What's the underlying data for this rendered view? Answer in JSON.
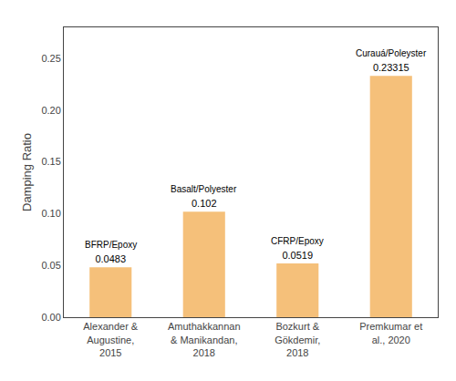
{
  "chart_data": {
    "type": "bar",
    "categories": [
      "Alexander &\nAugustine,\n2015",
      "Amuthakkannan\n& Manikandan,\n2018",
      "Bozkurt &\nGökdemir,\n2018",
      "Premkumar et\nal., 2020"
    ],
    "values": [
      0.0483,
      0.102,
      0.0519,
      0.23315
    ],
    "data_labels": true,
    "annotations": [
      "BFRP/Epoxy",
      "Basalt/Polyester",
      "CFRP/Epoxy",
      "Curauá/Poleyster"
    ],
    "color": "#F5C07A",
    "ylabel": "Damping Ratio",
    "ylim": [
      0,
      0.28
    ],
    "yticks": [
      {
        "value": 0,
        "label": "0.00"
      },
      0.05,
      {
        "value": 0.1,
        "label": "0.10"
      },
      0.15,
      {
        "value": 0.2,
        "label": "0.20"
      },
      0.25
    ],
    "grid": false
  }
}
